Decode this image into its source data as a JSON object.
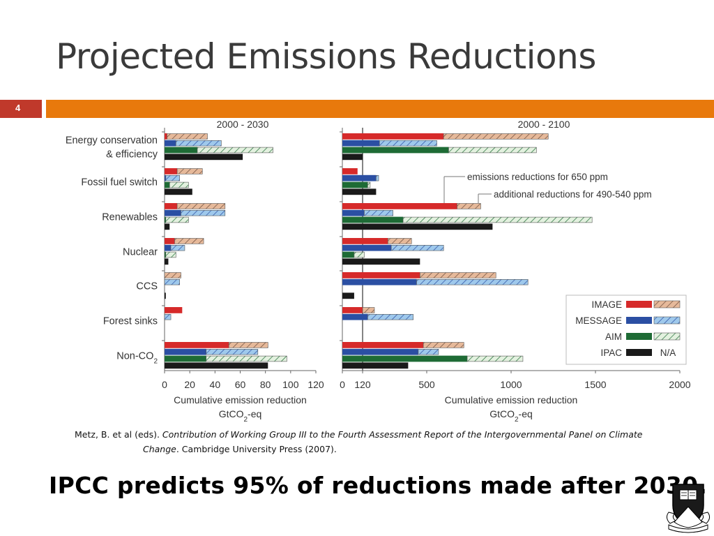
{
  "slide": {
    "title": "Projected Emissions Reductions",
    "number": "4",
    "citation_line1_a": "Metz, B. et al (eds). ",
    "citation_line1_b": "Contribution of  Working Group III to the Fourth Assessment Report of  the Intergovernmental Panel on Climate",
    "citation_line2_a": "Change",
    "citation_line2_b": ". Cambridge University Press (2007).",
    "bottom_message": "IPCC predicts 95% of reductions made after 2030."
  },
  "colors": {
    "accent_red": "#c0392b",
    "accent_orange": "#e8790c",
    "image": "#d62a2a",
    "image_hatch": "#e6b99a",
    "message": "#2b4fa3",
    "message_hatch": "#9fc9ec",
    "aim": "#1e6b35",
    "aim_hatch": "#c9e6c3",
    "ipac": "#1a1a1a"
  },
  "icons": {
    "seal": "princeton-shield-icon"
  },
  "chart_data": {
    "type": "bar",
    "orientation": "horizontal",
    "categories": [
      "Energy conservation\n& efficiency",
      "Fossil fuel switch",
      "Renewables",
      "Nuclear",
      "CCS",
      "Forest sinks",
      "Non-CO2"
    ],
    "series_names": [
      "IMAGE",
      "MESSAGE",
      "AIM",
      "IPAC"
    ],
    "legend": {
      "position": "bottom-right",
      "entries": [
        {
          "name": "IMAGE",
          "extra": ""
        },
        {
          "name": "MESSAGE",
          "extra": ""
        },
        {
          "name": "AIM",
          "extra": ""
        },
        {
          "name": "IPAC",
          "extra": "N/A"
        }
      ]
    },
    "annotations": [
      "emissions reductions for 650 ppm",
      "additional reductions for 490-540 ppm"
    ],
    "panels": [
      {
        "title": "2000 - 2030",
        "xlabel": "Cumulative emission reduction",
        "xunit": "GtCO2-eq",
        "xlim": [
          0,
          120
        ],
        "ticks": [
          0,
          20,
          40,
          60,
          80,
          100,
          120
        ],
        "bars": [
          [
            [
              2,
              34
            ],
            [
              9,
              45
            ],
            [
              26,
              86
            ],
            [
              62,
              null
            ]
          ],
          [
            [
              10,
              30
            ],
            [
              1,
              12
            ],
            [
              4,
              19
            ],
            [
              22,
              null
            ]
          ],
          [
            [
              10,
              48
            ],
            [
              13,
              48
            ],
            [
              1,
              19
            ],
            [
              4,
              null
            ]
          ],
          [
            [
              8,
              31
            ],
            [
              5,
              16
            ],
            [
              1,
              9
            ],
            [
              3,
              null
            ]
          ],
          [
            [
              0,
              13
            ],
            [
              0,
              12
            ],
            [
              0,
              0
            ],
            [
              1,
              null
            ]
          ],
          [
            [
              14,
              null
            ],
            [
              0,
              5
            ],
            [
              0,
              0
            ],
            [
              0,
              null
            ]
          ],
          [
            [
              51,
              82
            ],
            [
              33,
              74
            ],
            [
              33,
              97
            ],
            [
              82,
              null
            ]
          ]
        ]
      },
      {
        "title": "2000 - 2100",
        "xlabel": "Cumulative emission reduction",
        "xunit": "GtCO2-eq",
        "xlim": [
          0,
          2000
        ],
        "ticks": [
          0,
          120,
          500,
          1000,
          1500,
          2000
        ],
        "reference_line": 120,
        "bars": [
          [
            [
              600,
              1220
            ],
            [
              220,
              560
            ],
            [
              630,
              1150
            ],
            [
              120,
              null
            ]
          ],
          [
            [
              90,
              null
            ],
            [
              200,
              215
            ],
            [
              150,
              165
            ],
            [
              200,
              null
            ]
          ],
          [
            [
              680,
              820
            ],
            [
              130,
              300
            ],
            [
              360,
              1480
            ],
            [
              890,
              null
            ]
          ],
          [
            [
              270,
              410
            ],
            [
              290,
              600
            ],
            [
              70,
              130
            ],
            [
              460,
              null
            ]
          ],
          [
            [
              460,
              910
            ],
            [
              440,
              1100
            ],
            [
              0,
              0
            ],
            [
              70,
              null
            ]
          ],
          [
            [
              120,
              190
            ],
            [
              150,
              420
            ],
            [
              0,
              0
            ],
            [
              0,
              null
            ]
          ],
          [
            [
              480,
              720
            ],
            [
              450,
              570
            ],
            [
              740,
              1070
            ],
            [
              390,
              null
            ]
          ]
        ]
      }
    ]
  }
}
